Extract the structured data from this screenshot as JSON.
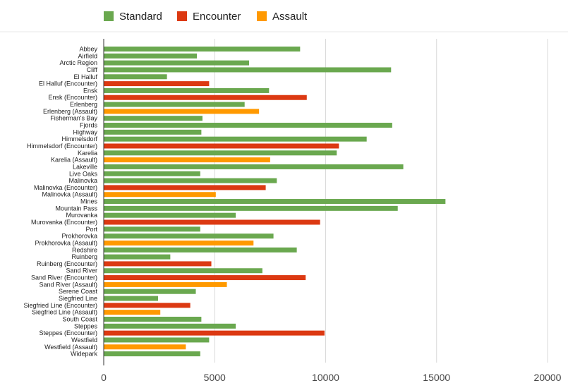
{
  "chart_data": {
    "type": "bar",
    "orientation": "horizontal",
    "title": "",
    "xlabel": "",
    "ylabel": "",
    "xlim": [
      0,
      20000
    ],
    "xticks": [
      0,
      5000,
      10000,
      15000,
      20000
    ],
    "xtick_labels": [
      "0",
      "5000",
      "10000",
      "15000",
      "20000"
    ],
    "grid": true,
    "legend_position": "top-left",
    "series_colors": {
      "Standard": "#6aa84f",
      "Encounter": "#dc3912",
      "Assault": "#ff9900"
    },
    "legend": [
      "Standard",
      "Encounter",
      "Assault"
    ],
    "categories": [
      {
        "label": "Abbey",
        "series": "Standard",
        "value": 8850
      },
      {
        "label": "Airfield",
        "series": "Standard",
        "value": 4200
      },
      {
        "label": "Arctic Region",
        "series": "Standard",
        "value": 6550
      },
      {
        "label": "Cliff",
        "series": "Standard",
        "value": 12950
      },
      {
        "label": "El Halluf",
        "series": "Standard",
        "value": 2850
      },
      {
        "label": "El Halluf (Encounter)",
        "series": "Encounter",
        "value": 4750
      },
      {
        "label": "Ensk",
        "series": "Standard",
        "value": 7450
      },
      {
        "label": "Ensk (Encounter)",
        "series": "Encounter",
        "value": 9150
      },
      {
        "label": "Erlenberg",
        "series": "Standard",
        "value": 6350
      },
      {
        "label": "Erlenberg (Assault)",
        "series": "Assault",
        "value": 7000
      },
      {
        "label": "Fisherman's Bay",
        "series": "Standard",
        "value": 4450
      },
      {
        "label": "Fjords",
        "series": "Standard",
        "value": 13000
      },
      {
        "label": "Highway",
        "series": "Standard",
        "value": 4400
      },
      {
        "label": "Himmelsdorf",
        "series": "Standard",
        "value": 11850
      },
      {
        "label": "Himmelsdorf (Encounter)",
        "series": "Encounter",
        "value": 10600
      },
      {
        "label": "Karelia",
        "series": "Standard",
        "value": 10500
      },
      {
        "label": "Karelia (Assault)",
        "series": "Assault",
        "value": 7500
      },
      {
        "label": "Lakeville",
        "series": "Standard",
        "value": 13500
      },
      {
        "label": "Live Oaks",
        "series": "Standard",
        "value": 4350
      },
      {
        "label": "Malinovka",
        "series": "Standard",
        "value": 7800
      },
      {
        "label": "Malinovka (Encounter)",
        "series": "Encounter",
        "value": 7300
      },
      {
        "label": "Malinovka (Assault)",
        "series": "Assault",
        "value": 5050
      },
      {
        "label": "Mines",
        "series": "Standard",
        "value": 15400
      },
      {
        "label": "Mountain Pass",
        "series": "Standard",
        "value": 13250
      },
      {
        "label": "Murovanka",
        "series": "Standard",
        "value": 5950
      },
      {
        "label": "Murovanka (Encounter)",
        "series": "Encounter",
        "value": 9750
      },
      {
        "label": "Port",
        "series": "Standard",
        "value": 4350
      },
      {
        "label": "Prokhorovka",
        "series": "Standard",
        "value": 7650
      },
      {
        "label": "Prokhorovka (Assault)",
        "series": "Assault",
        "value": 6750
      },
      {
        "label": "Redshire",
        "series": "Standard",
        "value": 8700
      },
      {
        "label": "Ruinberg",
        "series": "Standard",
        "value": 3000
      },
      {
        "label": "Ruinberg (Encounter)",
        "series": "Encounter",
        "value": 4850
      },
      {
        "label": "Sand River",
        "series": "Standard",
        "value": 7150
      },
      {
        "label": "Sand River (Encounter)",
        "series": "Encounter",
        "value": 9100
      },
      {
        "label": "Sand River (Assault)",
        "series": "Assault",
        "value": 5550
      },
      {
        "label": "Serene Coast",
        "series": "Standard",
        "value": 4150
      },
      {
        "label": "Siegfried Line",
        "series": "Standard",
        "value": 2450
      },
      {
        "label": "Siegfried Line (Encounter)",
        "series": "Encounter",
        "value": 3900
      },
      {
        "label": "Siegfried Line (Assault)",
        "series": "Assault",
        "value": 2550
      },
      {
        "label": "South Coast",
        "series": "Standard",
        "value": 4400
      },
      {
        "label": "Steppes",
        "series": "Standard",
        "value": 5950
      },
      {
        "label": "Steppes (Encounter)",
        "series": "Encounter",
        "value": 9950
      },
      {
        "label": "Westfield",
        "series": "Standard",
        "value": 4750
      },
      {
        "label": "Westfield (Assault)",
        "series": "Assault",
        "value": 3700
      },
      {
        "label": "Widepark",
        "series": "Standard",
        "value": 4350
      }
    ]
  }
}
